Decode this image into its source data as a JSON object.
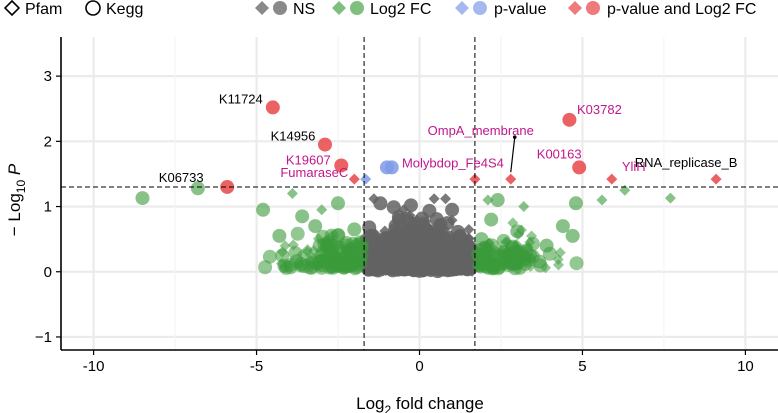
{
  "chart_data": {
    "type": "scatter",
    "title": "",
    "xlabel_main": "Log",
    "xlabel_sub": "2",
    "xlabel_rest": " fold change",
    "ylabel_main": "− Log",
    "ylabel_sub": "10",
    "ylabel_rest": "P",
    "xlim": [
      -11,
      11
    ],
    "ylim": [
      -1.2,
      3.6
    ],
    "xticks": [
      -10,
      -5,
      0,
      5,
      10
    ],
    "yticks": [
      -1,
      0,
      1,
      2,
      3
    ],
    "fc_cutoff": 1.7,
    "p_cutoff": 1.3,
    "colors": {
      "NS": "#636363",
      "Log2 FC": "#3a9a3a",
      "p-value": "#7e9ae8",
      "p-value and Log2 FC": "#e8474a",
      "label": "#c0178c",
      "label_black": "#000000"
    },
    "legend": {
      "shape_items": [
        {
          "label": "Pfam",
          "shape": "diamond"
        },
        {
          "label": "Kegg",
          "shape": "circle"
        }
      ],
      "color_items": [
        {
          "label": "NS",
          "color_key": "NS"
        },
        {
          "label": "Log2 FC",
          "color_key": "Log2 FC"
        },
        {
          "label": "p-value",
          "color_key": "p-value"
        },
        {
          "label": "p-value and Log2 FC",
          "color_key": "p-value and Log2 FC"
        }
      ]
    },
    "series": [
      {
        "name": "p-value and Log2 FC",
        "shape": "circle",
        "points": [
          {
            "x": -4.5,
            "y": 2.52,
            "label": "K11724",
            "label_color": "black"
          },
          {
            "x": -2.9,
            "y": 1.95,
            "label": "K14956",
            "label_color": "black"
          },
          {
            "x": -2.4,
            "y": 1.63,
            "label": "K19607",
            "label_color": "magenta"
          },
          {
            "x": -5.9,
            "y": 1.3,
            "label": "K06733",
            "label_color": "black"
          },
          {
            "x": 4.6,
            "y": 2.33,
            "label": "K03782",
            "label_color": "magenta"
          },
          {
            "x": 4.9,
            "y": 1.6,
            "label": "K00163",
            "label_color": "magenta"
          }
        ]
      },
      {
        "name": "p-value and Log2 FC",
        "shape": "diamond",
        "points": [
          {
            "x": -2.0,
            "y": 1.42,
            "label": "FumaraseC",
            "label_color": "magenta"
          },
          {
            "x": 1.7,
            "y": 1.42,
            "label": "",
            "label_color": ""
          },
          {
            "x": 2.8,
            "y": 1.42,
            "label": "OmpA_membrane",
            "label_color": "magenta"
          },
          {
            "x": 5.9,
            "y": 1.42,
            "label": "YliH",
            "label_color": "magenta"
          },
          {
            "x": 9.1,
            "y": 1.42,
            "label": "RNA_replicase_B",
            "label_color": "black"
          }
        ]
      },
      {
        "name": "p-value",
        "shape": "circle",
        "points": [
          {
            "x": -1.0,
            "y": 1.6,
            "label": "Molybdop_Fe4S4",
            "label_color": "magenta"
          },
          {
            "x": -0.85,
            "y": 1.6,
            "label": "",
            "label_color": ""
          }
        ]
      },
      {
        "name": "p-value",
        "shape": "diamond",
        "points": [
          {
            "x": -1.65,
            "y": 1.42,
            "label": "",
            "label_color": ""
          }
        ]
      },
      {
        "name": "Log2 FC",
        "shape": "circle",
        "points": [
          {
            "x": -8.5,
            "y": 1.13
          },
          {
            "x": -6.8,
            "y": 1.28
          },
          {
            "x": -4.8,
            "y": 0.95
          },
          {
            "x": -4.3,
            "y": 0.55
          },
          {
            "x": -3.6,
            "y": 0.85
          },
          {
            "x": -3.2,
            "y": 0.7
          },
          {
            "x": -2.8,
            "y": 0.45
          },
          {
            "x": -2.5,
            "y": 1.05
          },
          {
            "x": -2.2,
            "y": 0.3
          },
          {
            "x": -2.0,
            "y": 0.65
          },
          {
            "x": 1.9,
            "y": 0.5
          },
          {
            "x": 2.2,
            "y": 0.8
          },
          {
            "x": 2.6,
            "y": 0.3
          },
          {
            "x": 3.0,
            "y": 0.62
          },
          {
            "x": 3.4,
            "y": 0.25
          },
          {
            "x": 3.9,
            "y": 0.4
          },
          {
            "x": 4.4,
            "y": 0.7
          },
          {
            "x": 4.8,
            "y": 1.05
          },
          {
            "x": 4.7,
            "y": 0.55
          },
          {
            "x": 2.4,
            "y": 1.1
          }
        ]
      },
      {
        "name": "Log2 FC",
        "shape": "diamond",
        "points": [
          {
            "x": -3.9,
            "y": 1.2
          },
          {
            "x": -3.0,
            "y": 0.95
          },
          {
            "x": 2.1,
            "y": 1.1
          },
          {
            "x": 3.2,
            "y": 1.0
          },
          {
            "x": 5.6,
            "y": 1.1
          },
          {
            "x": 6.3,
            "y": 1.25
          },
          {
            "x": 7.7,
            "y": 1.13
          }
        ]
      },
      {
        "name": "NS",
        "shape": "circle",
        "points": [
          {
            "x": -1.5,
            "y": 0.55
          },
          {
            "x": -1.2,
            "y": 1.05
          },
          {
            "x": 1.0,
            "y": 0.95
          },
          {
            "x": 0.4,
            "y": 0.2
          },
          {
            "x": -0.3,
            "y": 0.15
          }
        ]
      },
      {
        "name": "NS",
        "shape": "diamond",
        "points": [
          {
            "x": -1.4,
            "y": 1.12
          },
          {
            "x": 0.45,
            "y": 1.12
          },
          {
            "x": 0.8,
            "y": 1.12
          }
        ]
      }
    ]
  }
}
